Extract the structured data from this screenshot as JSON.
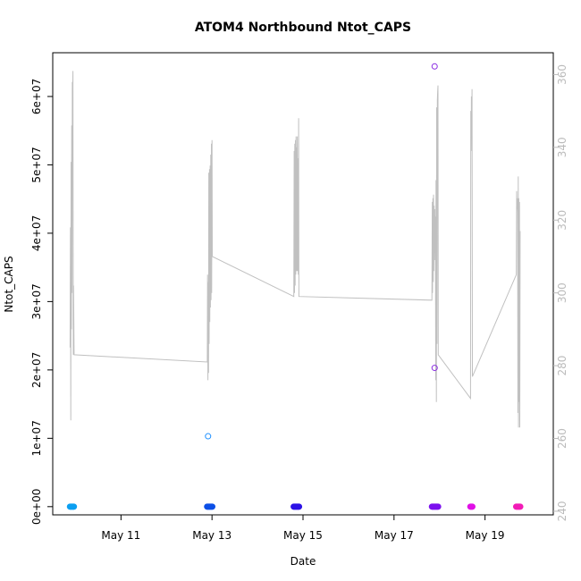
{
  "chart_data": {
    "type": "scatter",
    "title": "ATOM4 Northbound Ntot_CAPS",
    "xlabel": "Date",
    "ylabel": "Ntot_CAPS",
    "x_domain": [
      "2023-05-09T12:00",
      "2023-05-20T12:00"
    ],
    "x_ticks": [
      {
        "value": "2023-05-11",
        "label": "May 11"
      },
      {
        "value": "2023-05-13",
        "label": "May 13"
      },
      {
        "value": "2023-05-15",
        "label": "May 15"
      },
      {
        "value": "2023-05-17",
        "label": "May 17"
      },
      {
        "value": "2023-05-19",
        "label": "May 19"
      }
    ],
    "y_left": {
      "range": [
        -1200000,
        66400000
      ],
      "ticks": [
        {
          "value": 0,
          "label": "0e+00"
        },
        {
          "value": 10000000,
          "label": "1e+07"
        },
        {
          "value": 20000000,
          "label": "2e+07"
        },
        {
          "value": 30000000,
          "label": "3e+07"
        },
        {
          "value": 40000000,
          "label": "4e+07"
        },
        {
          "value": 50000000,
          "label": "5e+07"
        },
        {
          "value": 60000000,
          "label": "6e+07"
        }
      ]
    },
    "y_right": {
      "range": [
        239,
        366
      ],
      "color": "#bbbbbb",
      "ticks": [
        {
          "value": 240,
          "label": "240"
        },
        {
          "value": 260,
          "label": "260"
        },
        {
          "value": 280,
          "label": "280"
        },
        {
          "value": 300,
          "label": "300"
        },
        {
          "value": 320,
          "label": "320"
        },
        {
          "value": 340,
          "label": "340"
        },
        {
          "value": 360,
          "label": "360"
        }
      ]
    },
    "grid": false,
    "legend": "none",
    "secondary_line": {
      "axis": "right",
      "color": "#c0c0c0",
      "points": [
        [
          "2023-05-09T21:10",
          285
        ],
        [
          "2023-05-09T21:20",
          318
        ],
        [
          "2023-05-09T21:30",
          265
        ],
        [
          "2023-05-09T21:40",
          336
        ],
        [
          "2023-05-09T21:50",
          290
        ],
        [
          "2023-05-09T22:00",
          346
        ],
        [
          "2023-05-09T22:10",
          300
        ],
        [
          "2023-05-09T22:20",
          358
        ],
        [
          "2023-05-09T22:30",
          355
        ],
        [
          "2023-05-09T22:40",
          361
        ],
        [
          "2023-05-09T22:50",
          283
        ],
        [
          "2023-05-09T23:00",
          302
        ],
        [
          "2023-05-09T23:15",
          283
        ],
        [
          "2023-05-12T21:30",
          281
        ],
        [
          "2023-05-12T21:40",
          305
        ],
        [
          "2023-05-12T21:50",
          276
        ],
        [
          "2023-05-12T22:00",
          303
        ],
        [
          "2023-05-12T22:10",
          278
        ],
        [
          "2023-05-12T22:20",
          333
        ],
        [
          "2023-05-12T22:30",
          286
        ],
        [
          "2023-05-12T22:40",
          334
        ],
        [
          "2023-05-12T22:50",
          292
        ],
        [
          "2023-05-12T23:00",
          335
        ],
        [
          "2023-05-12T23:10",
          296
        ],
        [
          "2023-05-12T23:20",
          338
        ],
        [
          "2023-05-12T23:30",
          298
        ],
        [
          "2023-05-12T23:40",
          341
        ],
        [
          "2023-05-12T23:50",
          300
        ],
        [
          "2023-05-13T00:00",
          342
        ],
        [
          "2023-05-13T00:10",
          310
        ],
        [
          "2023-05-14T19:10",
          299
        ],
        [
          "2023-05-14T19:20",
          339
        ],
        [
          "2023-05-14T19:30",
          300
        ],
        [
          "2023-05-14T19:40",
          341
        ],
        [
          "2023-05-14T19:50",
          302
        ],
        [
          "2023-05-14T20:00",
          342
        ],
        [
          "2023-05-14T20:10",
          305
        ],
        [
          "2023-05-14T20:20",
          343
        ],
        [
          "2023-05-14T20:30",
          306
        ],
        [
          "2023-05-14T20:40",
          340
        ],
        [
          "2023-05-14T20:50",
          306
        ],
        [
          "2023-05-14T21:00",
          343
        ],
        [
          "2023-05-14T21:10",
          306
        ],
        [
          "2023-05-14T21:20",
          337
        ],
        [
          "2023-05-14T21:30",
          305
        ],
        [
          "2023-05-14T21:40",
          348
        ],
        [
          "2023-05-14T21:50",
          299
        ],
        [
          "2023-05-17T20:00",
          298
        ],
        [
          "2023-05-17T20:10",
          325
        ],
        [
          "2023-05-17T20:20",
          300
        ],
        [
          "2023-05-17T20:30",
          326
        ],
        [
          "2023-05-17T20:40",
          303
        ],
        [
          "2023-05-17T20:50",
          327
        ],
        [
          "2023-05-17T21:00",
          306
        ],
        [
          "2023-05-17T21:10",
          324
        ],
        [
          "2023-05-17T21:20",
          309
        ],
        [
          "2023-05-17T21:30",
          323
        ],
        [
          "2023-05-17T21:40",
          311
        ],
        [
          "2023-05-17T21:50",
          321
        ],
        [
          "2023-05-17T22:00",
          276
        ],
        [
          "2023-05-17T22:10",
          331
        ],
        [
          "2023-05-17T22:20",
          270
        ],
        [
          "2023-05-17T22:30",
          351
        ],
        [
          "2023-05-17T22:40",
          286
        ],
        [
          "2023-05-17T22:50",
          353
        ],
        [
          "2023-05-17T23:00",
          355
        ],
        [
          "2023-05-17T23:10",
          357
        ],
        [
          "2023-05-17T23:20",
          283
        ],
        [
          "2023-05-18T16:20",
          271
        ],
        [
          "2023-05-18T16:30",
          350
        ],
        [
          "2023-05-18T16:40",
          339
        ],
        [
          "2023-05-18T16:50",
          354
        ],
        [
          "2023-05-18T17:00",
          347
        ],
        [
          "2023-05-18T17:10",
          356
        ],
        [
          "2023-05-18T17:20",
          277
        ],
        [
          "2023-05-19T16:30",
          305
        ],
        [
          "2023-05-19T16:40",
          328
        ],
        [
          "2023-05-19T16:50",
          323
        ],
        [
          "2023-05-19T17:00",
          326
        ],
        [
          "2023-05-19T17:10",
          322
        ],
        [
          "2023-05-19T17:20",
          267
        ],
        [
          "2023-05-19T17:30",
          332
        ],
        [
          "2023-05-19T17:40",
          263
        ],
        [
          "2023-05-19T17:50",
          326
        ],
        [
          "2023-05-19T18:00",
          270
        ],
        [
          "2023-05-19T18:10",
          325
        ],
        [
          "2023-05-19T18:20",
          263
        ],
        [
          "2023-05-19T18:30",
          317
        ]
      ]
    },
    "series": [
      {
        "color": "#1e90ff",
        "points": [
          [
            "2023-05-12T21:55",
            10300000
          ]
        ]
      },
      {
        "color": "#8a2be2",
        "points": [
          [
            "2023-05-17T21:25",
            64400000
          ],
          [
            "2023-05-17T21:25",
            20300000
          ]
        ]
      }
    ],
    "bands": [
      {
        "color": "#0b9ff1",
        "y": 0,
        "x_from": "2023-05-09T21:05",
        "x_to": "2023-05-09T23:10"
      },
      {
        "color": "#0c4fe6",
        "y": 0,
        "x_from": "2023-05-12T21:25",
        "x_to": "2023-05-13T00:10"
      },
      {
        "color": "#2c12e6",
        "y": 0,
        "x_from": "2023-05-14T19:05",
        "x_to": "2023-05-14T21:55"
      },
      {
        "color": "#7b10ee",
        "y": 0,
        "x_from": "2023-05-17T20:00",
        "x_to": "2023-05-17T23:15"
      },
      {
        "color": "#e010e6",
        "y": 0,
        "x_from": "2023-05-18T16:15",
        "x_to": "2023-05-18T17:20"
      },
      {
        "color": "#f21bb6",
        "y": 0,
        "x_from": "2023-05-19T16:25",
        "x_to": "2023-05-19T18:35"
      }
    ]
  }
}
